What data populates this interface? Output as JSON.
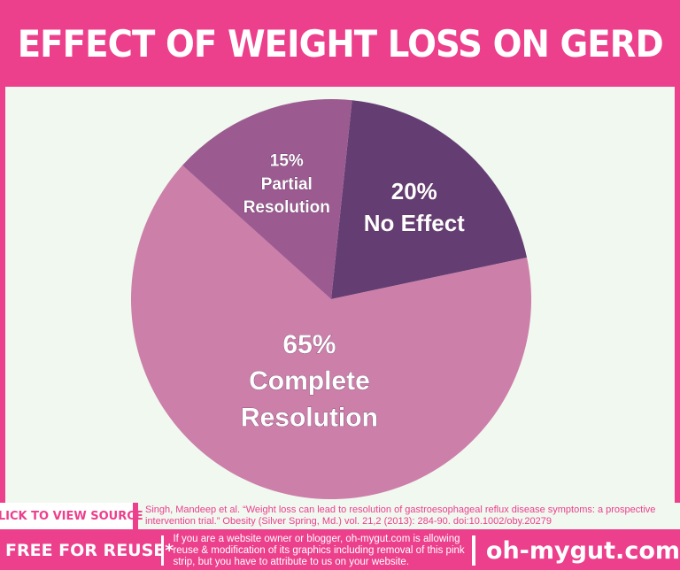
{
  "title": "EFFECT OF WEIGHT LOSS ON GERD",
  "chart_data": {
    "type": "pie",
    "title": "EFFECT OF WEIGHT LOSS ON GERD",
    "slices": [
      {
        "label": "No Effect",
        "value": 20,
        "value_text": "20%",
        "color": "#643d72"
      },
      {
        "label": "Complete Resolution",
        "value": 65,
        "value_text": "65%",
        "label_lines": [
          "Complete",
          "Resolution"
        ],
        "color": "#cc7fa8"
      },
      {
        "label": "Partial Resolution",
        "value": 15,
        "value_text": "15%",
        "label_lines": [
          "Partial",
          "Resolution"
        ],
        "color": "#9c5b90"
      }
    ]
  },
  "footer": {
    "source_button": "CLICK TO VIEW SOURCE",
    "citation": "Singh, Mandeep et al. “Weight loss can lead to resolution of gastroesophageal reflux disease symptoms: a prospective intervention trial.” Obesity (Silver Spring, Md.) vol. 21,2 (2013): 284-90. doi:10.1002/oby.20279",
    "reuse_label": "FREE FOR REUSE*",
    "permission": "If you are a website owner or blogger, oh-mygut.com is allowing reuse & modification of its graphics including removal of  this pink strip, but you have to attribute to us on your website.",
    "site": "oh-mygut.com"
  },
  "colors": {
    "brand_pink": "#ec3f8c",
    "panel_bg": "#f0f8f0"
  }
}
